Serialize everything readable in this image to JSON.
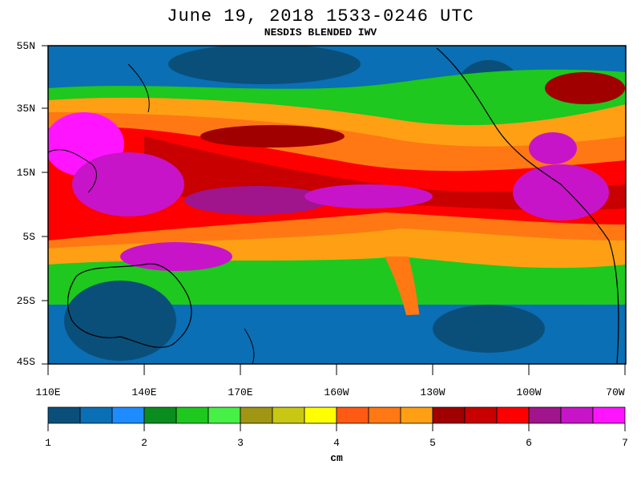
{
  "header": {
    "title": "June 19, 2018  1533-0246 UTC",
    "subtitle": "NESDIS BLENDED IWV"
  },
  "map": {
    "lat_labels": [
      "55N",
      "35N",
      "15N",
      "5S",
      "25S",
      "45S"
    ],
    "lon_labels": [
      "110E",
      "140E",
      "170E",
      "160W",
      "130W",
      "100W",
      "70W"
    ]
  },
  "colorbar": {
    "unit": "cm",
    "tick_labels": [
      "1",
      "2",
      "3",
      "4",
      "5",
      "6",
      "7"
    ],
    "colors": [
      "#0a4f7a",
      "#0a6fb4",
      "#1e8cff",
      "#0a8c1e",
      "#1ec81e",
      "#46f046",
      "#a09614",
      "#c8c814",
      "#ffff00",
      "#ff5a14",
      "#ff7814",
      "#ffa014",
      "#a00000",
      "#c80000",
      "#ff0000",
      "#a0148c",
      "#c814c8",
      "#ff14ff"
    ]
  }
}
